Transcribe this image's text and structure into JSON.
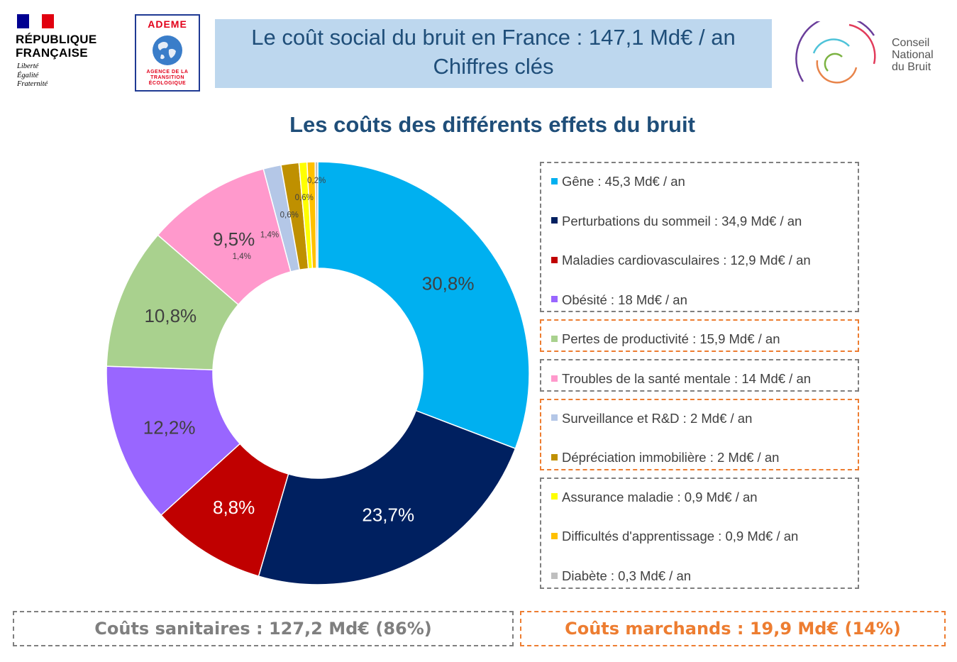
{
  "logos": {
    "republique": {
      "name_line1": "RÉPUBLIQUE",
      "name_line2": "FRANÇAISE",
      "motto_line1": "Liberté",
      "motto_line2": "Égalité",
      "motto_line3": "Fraternité"
    },
    "ademe": {
      "name": "ADEME",
      "sub_line1": "AGENCE DE LA",
      "sub_line2": "TRANSITION",
      "sub_line3": "ÉCOLOGIQUE"
    },
    "cnb": {
      "line1": "Conseil",
      "line2": "National",
      "line3": "du Bruit"
    }
  },
  "header": {
    "title_line1": "Le coût social du bruit en France : 147,1 Md€ / an",
    "title_line2": "Chiffres clés"
  },
  "summary": {
    "sanitaires": "Coûts sanitaires : 127,2 Md€ (86%)",
    "marchands": "Coûts marchands : 19,9 Md€ (14%)"
  },
  "colors": {
    "title": "#1f4e79",
    "title_bg": "#bdd7ee",
    "sanitaires_border": "#7f7f7f",
    "marchands_border": "#ed7d31"
  },
  "chart_data": {
    "type": "pie",
    "donut": true,
    "title": "Les coûts des différents effets du bruit",
    "unit": "Md€ / an",
    "legend_position": "right",
    "slices": [
      {
        "legend": "Gêne : 45,3 Md€ / an",
        "value": 45.3,
        "label": "30,8%",
        "color": "#00b0f0",
        "label_color": "#404040"
      },
      {
        "legend": "Perturbations du sommeil : 34,9 Md€ / an",
        "value": 34.9,
        "label": "23,7%",
        "color": "#002060",
        "label_color": "#ffffff"
      },
      {
        "legend": "Maladies cardiovasculaires : 12,9 Md€ / an",
        "value": 12.9,
        "label": "8,8%",
        "color": "#c00000",
        "label_color": "#ffffff"
      },
      {
        "legend": "Obésité : 18 Md€ / an",
        "value": 18,
        "label": "12,2%",
        "color": "#9966ff",
        "label_color": "#404040"
      },
      {
        "legend": "Pertes de productivité : 15,9 Md€ / an",
        "value": 15.9,
        "label": "10,8%",
        "color": "#a9d18e",
        "label_color": "#404040"
      },
      {
        "legend": "Troubles de la santé mentale : 14 Md€ / an",
        "value": 14,
        "label": "9,5%",
        "color": "#ff99cc",
        "label_color": "#404040"
      },
      {
        "legend": "Surveillance et R&D : 2 Md€ / an",
        "value": 2,
        "label": "1,4%",
        "color": "#b4c7e7",
        "label_color": "#404040"
      },
      {
        "legend": "Dépréciation immobilière : 2 Md€ / an",
        "value": 2,
        "label": "1,4%",
        "color": "#bf9000",
        "label_color": "#404040"
      },
      {
        "legend": "Assurance maladie : 0,9 Md€ / an",
        "value": 0.9,
        "label": "0,6%",
        "color": "#ffff00",
        "label_color": "#404040"
      },
      {
        "legend": "Difficultés d'apprentissage : 0,9 Md€ / an",
        "value": 0.9,
        "label": "0,6%",
        "color": "#ffc000",
        "label_color": "#404040"
      },
      {
        "legend": "Diabète : 0,3 Md€ / an",
        "value": 0.3,
        "label": "0,2%",
        "color": "#bfbfbf",
        "label_color": "#404040"
      }
    ],
    "legend_groups": [
      {
        "border": "#7f7f7f",
        "items": [
          0,
          1,
          2,
          3
        ]
      },
      {
        "border": "#ed7d31",
        "items": [
          4
        ]
      },
      {
        "border": "#7f7f7f",
        "items": [
          5
        ]
      },
      {
        "border": "#ed7d31",
        "items": [
          6,
          7
        ]
      },
      {
        "border": "#7f7f7f",
        "items": [
          8,
          9,
          10
        ]
      }
    ]
  }
}
